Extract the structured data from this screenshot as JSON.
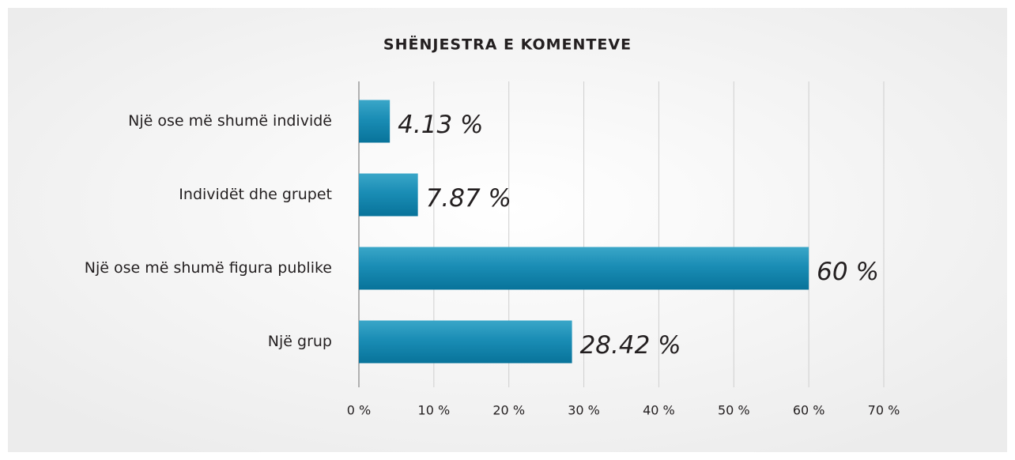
{
  "chart_data": {
    "type": "bar",
    "orientation": "horizontal",
    "title": "SHËNJESTRA E KOMENTEVE",
    "categories": [
      "Një ose më shumë individë",
      "Individët dhe grupet",
      "Një ose më shumë figura publike",
      "Një grup"
    ],
    "values": [
      4.13,
      7.87,
      60,
      28.42
    ],
    "value_labels": [
      "4.13 %",
      "7.87 %",
      "60 %",
      "28.42 %"
    ],
    "color": "#1a8db5",
    "xlim": [
      0,
      70
    ],
    "xticks": [
      {
        "value": 0,
        "label": "0 %"
      },
      {
        "value": 10,
        "label": "10 %"
      },
      {
        "value": 20,
        "label": "20 %"
      },
      {
        "value": 30,
        "label": "30 %"
      },
      {
        "value": 40,
        "label": "40 %"
      },
      {
        "value": 50,
        "label": "50 %"
      },
      {
        "value": 60,
        "label": "60 %"
      },
      {
        "value": 70,
        "label": "70 %"
      }
    ],
    "grid": true
  }
}
